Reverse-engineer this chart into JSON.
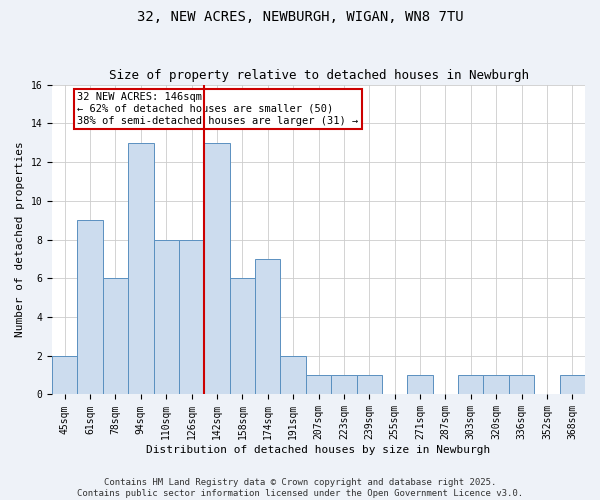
{
  "title": "32, NEW ACRES, NEWBURGH, WIGAN, WN8 7TU",
  "subtitle": "Size of property relative to detached houses in Newburgh",
  "xlabel": "Distribution of detached houses by size in Newburgh",
  "ylabel": "Number of detached properties",
  "categories": [
    "45sqm",
    "61sqm",
    "78sqm",
    "94sqm",
    "110sqm",
    "126sqm",
    "142sqm",
    "158sqm",
    "174sqm",
    "191sqm",
    "207sqm",
    "223sqm",
    "239sqm",
    "255sqm",
    "271sqm",
    "287sqm",
    "303sqm",
    "320sqm",
    "336sqm",
    "352sqm",
    "368sqm"
  ],
  "values": [
    2,
    9,
    6,
    13,
    8,
    8,
    13,
    6,
    7,
    2,
    1,
    1,
    1,
    0,
    1,
    0,
    1,
    1,
    1,
    0,
    1
  ],
  "highlight_index": 6,
  "bar_color": "#ccdcee",
  "bar_edge_color": "#5a90c0",
  "highlight_line_color": "#cc0000",
  "ylim": [
    0,
    16
  ],
  "yticks": [
    0,
    2,
    4,
    6,
    8,
    10,
    12,
    14,
    16
  ],
  "annotation_text": "32 NEW ACRES: 146sqm\n← 62% of detached houses are smaller (50)\n38% of semi-detached houses are larger (31) →",
  "footer1": "Contains HM Land Registry data © Crown copyright and database right 2025.",
  "footer2": "Contains public sector information licensed under the Open Government Licence v3.0.",
  "background_color": "#eef2f8",
  "plot_background_color": "#ffffff",
  "grid_color": "#cccccc",
  "title_fontsize": 10,
  "subtitle_fontsize": 9,
  "axis_label_fontsize": 8,
  "tick_fontsize": 7,
  "annotation_fontsize": 7.5,
  "footer_fontsize": 6.5
}
